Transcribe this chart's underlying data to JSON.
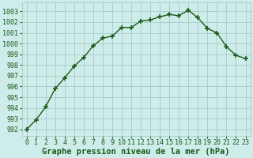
{
  "x": [
    0,
    1,
    2,
    3,
    4,
    5,
    6,
    7,
    8,
    9,
    10,
    11,
    12,
    13,
    14,
    15,
    16,
    17,
    18,
    19,
    20,
    21,
    22,
    23
  ],
  "y": [
    992.0,
    992.9,
    994.1,
    995.8,
    996.8,
    997.9,
    998.7,
    999.8,
    1000.5,
    1000.7,
    1001.5,
    1001.5,
    1002.1,
    1002.2,
    1002.5,
    1002.7,
    1002.6,
    1003.1,
    1002.4,
    1001.4,
    1001.0,
    999.7,
    998.9,
    998.6
  ],
  "line_color": "#1a5c1a",
  "marker": "+",
  "marker_size": 4,
  "marker_lw": 1.2,
  "line_width": 1.0,
  "bg_color": "#ceecea",
  "grid_color": "#aacfcc",
  "xlabel": "Graphe pression niveau de la mer (hPa)",
  "xlabel_fontsize": 7.5,
  "xlabel_color": "#1a5c1a",
  "ytick_labels": [
    992,
    993,
    994,
    995,
    996,
    997,
    998,
    999,
    1000,
    1001,
    1002,
    1003
  ],
  "ylim": [
    991.4,
    1003.8
  ],
  "xlim": [
    -0.5,
    23.5
  ],
  "xtick_labels": [
    "0",
    "1",
    "2",
    "3",
    "4",
    "5",
    "6",
    "7",
    "8",
    "9",
    "10",
    "11",
    "12",
    "13",
    "14",
    "15",
    "16",
    "17",
    "18",
    "19",
    "20",
    "21",
    "22",
    "23"
  ],
  "tick_fontsize": 6.0,
  "tick_color": "#1a5c1a"
}
